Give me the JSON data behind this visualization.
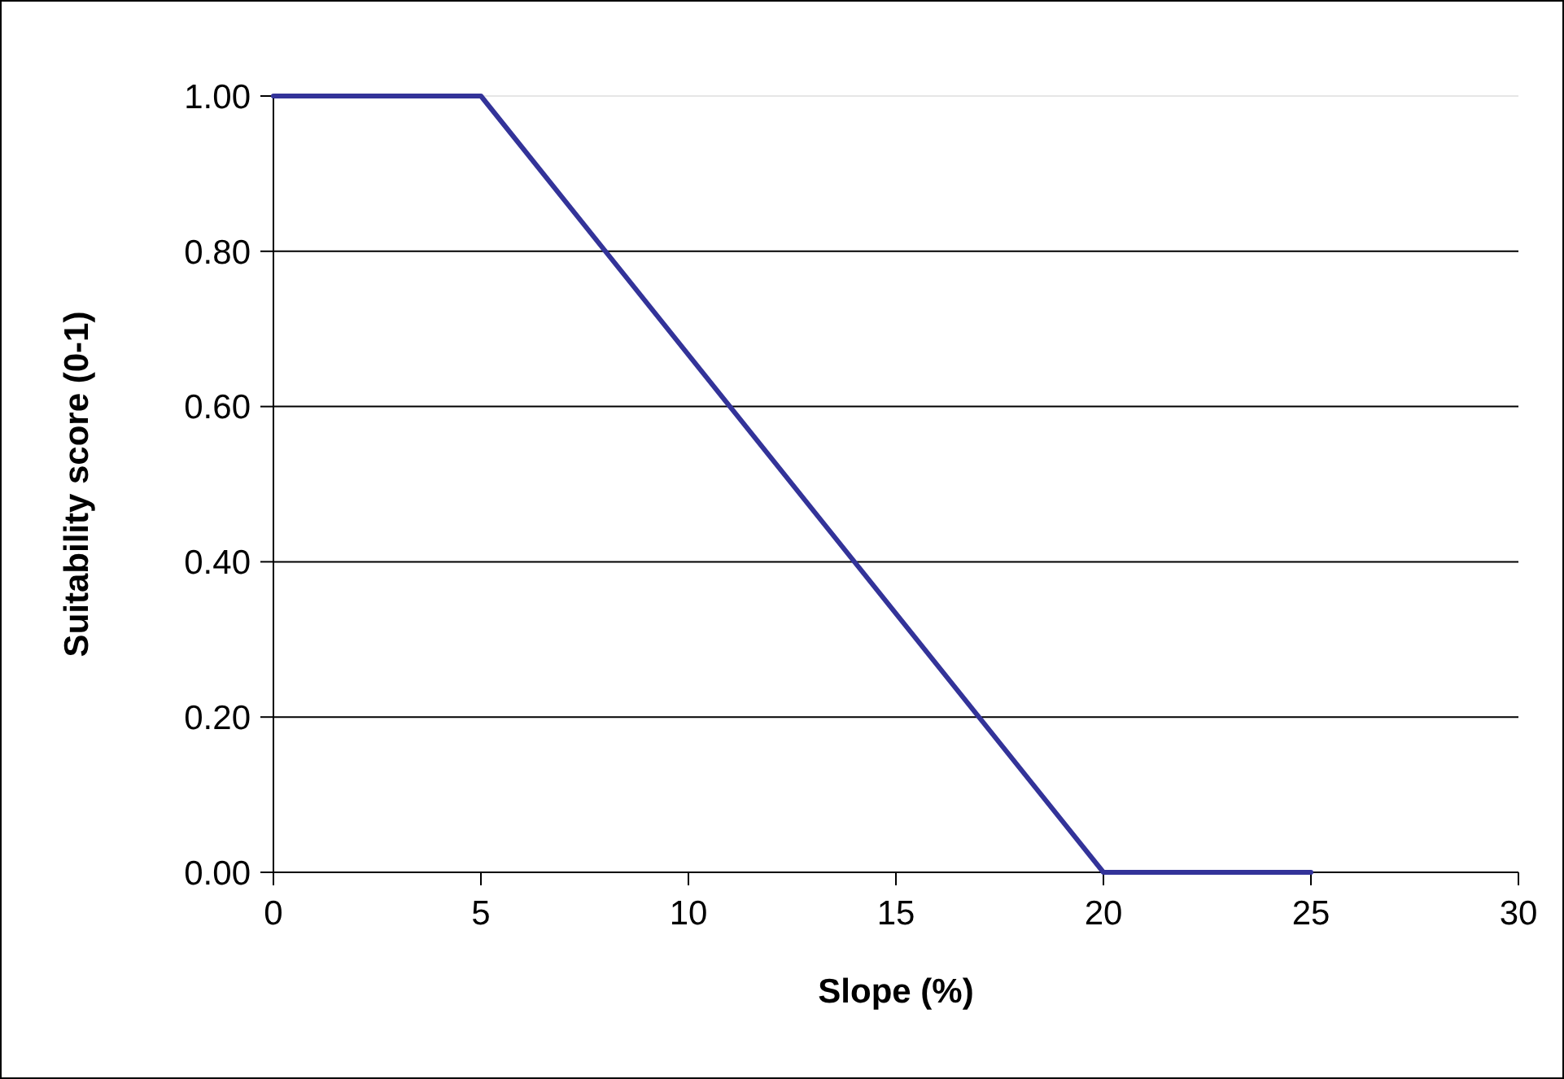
{
  "chart_data": {
    "type": "line",
    "xlabel": "Slope (%)",
    "ylabel": "Suitability score (0-1)",
    "x": [
      0,
      5,
      20,
      25
    ],
    "series": [
      {
        "color": "#333399",
        "values": [
          1,
          1,
          0,
          0
        ]
      }
    ],
    "xlim": [
      0,
      30
    ],
    "xticks": [
      0,
      5,
      10,
      15,
      20,
      25,
      30
    ],
    "ylim": [
      0,
      1
    ],
    "yticks": [
      {
        "value": 0,
        "label": "0.00"
      },
      {
        "value": 0.2,
        "label": "0.20"
      },
      {
        "value": 0.4,
        "label": "0.40"
      },
      {
        "value": 0.6,
        "label": "0.60"
      },
      {
        "value": 0.8,
        "label": "0.80"
      },
      {
        "value": 1,
        "label": "1.00"
      }
    ],
    "grid": "y",
    "marker": "none",
    "line_style": "solid"
  }
}
